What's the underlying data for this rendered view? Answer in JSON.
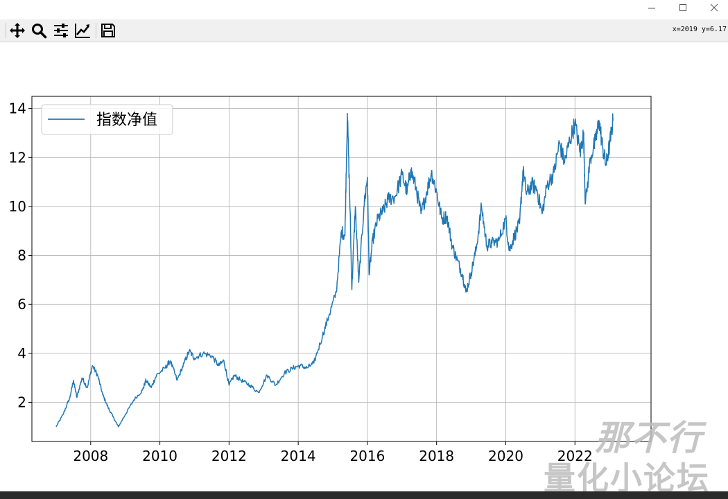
{
  "window": {
    "minimize_icon": "minimize-icon",
    "maximize_icon": "maximize-icon",
    "close_icon": "close-icon"
  },
  "toolbar": {
    "tools": [
      "move-icon",
      "zoom-icon",
      "sliders-icon",
      "trend-icon",
      "save-icon"
    ],
    "coordinate_readout": "x=2019 y=6.17"
  },
  "watermark": {
    "line1": "那不行",
    "line2": "量化小论坛"
  },
  "chart_data": {
    "type": "line",
    "legend": "top-left",
    "grid": true,
    "xlim": [
      2006.3,
      2024.2
    ],
    "ylim": [
      0.4,
      14.5
    ],
    "xticks": [
      2008,
      2010,
      2012,
      2014,
      2016,
      2018,
      2020,
      2022
    ],
    "yticks": [
      2,
      4,
      6,
      8,
      10,
      12,
      14
    ],
    "series": [
      {
        "name": "指数净值",
        "color": "#1f77b4",
        "points": [
          [
            2007.0,
            1.0
          ],
          [
            2007.2,
            1.5
          ],
          [
            2007.4,
            2.2
          ],
          [
            2007.5,
            2.9
          ],
          [
            2007.6,
            2.2
          ],
          [
            2007.75,
            3.0
          ],
          [
            2007.9,
            2.6
          ],
          [
            2008.05,
            3.5
          ],
          [
            2008.2,
            3.1
          ],
          [
            2008.35,
            2.3
          ],
          [
            2008.5,
            1.8
          ],
          [
            2008.65,
            1.4
          ],
          [
            2008.8,
            1.0
          ],
          [
            2009.0,
            1.5
          ],
          [
            2009.25,
            2.1
          ],
          [
            2009.5,
            2.5
          ],
          [
            2009.6,
            2.9
          ],
          [
            2009.75,
            2.6
          ],
          [
            2009.9,
            3.1
          ],
          [
            2010.15,
            3.4
          ],
          [
            2010.3,
            3.7
          ],
          [
            2010.5,
            2.9
          ],
          [
            2010.7,
            3.6
          ],
          [
            2010.85,
            4.1
          ],
          [
            2011.0,
            3.8
          ],
          [
            2011.25,
            4.0
          ],
          [
            2011.5,
            3.9
          ],
          [
            2011.7,
            3.5
          ],
          [
            2011.85,
            3.7
          ],
          [
            2012.0,
            2.7
          ],
          [
            2012.15,
            3.1
          ],
          [
            2012.35,
            2.9
          ],
          [
            2012.6,
            2.7
          ],
          [
            2012.85,
            2.4
          ],
          [
            2013.1,
            3.1
          ],
          [
            2013.35,
            2.7
          ],
          [
            2013.6,
            3.2
          ],
          [
            2013.85,
            3.4
          ],
          [
            2014.05,
            3.5
          ],
          [
            2014.25,
            3.4
          ],
          [
            2014.45,
            3.6
          ],
          [
            2014.7,
            4.7
          ],
          [
            2014.9,
            5.6
          ],
          [
            2015.1,
            6.5
          ],
          [
            2015.25,
            9.0
          ],
          [
            2015.35,
            8.8
          ],
          [
            2015.42,
            13.8
          ],
          [
            2015.5,
            9.8
          ],
          [
            2015.55,
            6.6
          ],
          [
            2015.65,
            10.0
          ],
          [
            2015.75,
            6.9
          ],
          [
            2015.9,
            10.0
          ],
          [
            2016.0,
            11.2
          ],
          [
            2016.05,
            7.2
          ],
          [
            2016.15,
            8.6
          ],
          [
            2016.3,
            9.5
          ],
          [
            2016.45,
            9.8
          ],
          [
            2016.6,
            10.3
          ],
          [
            2016.8,
            10.4
          ],
          [
            2017.0,
            11.3
          ],
          [
            2017.15,
            10.6
          ],
          [
            2017.25,
            11.5
          ],
          [
            2017.4,
            10.8
          ],
          [
            2017.55,
            9.7
          ],
          [
            2017.7,
            10.5
          ],
          [
            2017.85,
            11.4
          ],
          [
            2018.0,
            10.6
          ],
          [
            2018.15,
            9.5
          ],
          [
            2018.3,
            9.6
          ],
          [
            2018.45,
            8.4
          ],
          [
            2018.6,
            7.8
          ],
          [
            2018.75,
            7.2
          ],
          [
            2018.85,
            6.5
          ],
          [
            2019.0,
            7.3
          ],
          [
            2019.15,
            8.3
          ],
          [
            2019.3,
            10.0
          ],
          [
            2019.45,
            8.4
          ],
          [
            2019.6,
            8.5
          ],
          [
            2019.8,
            8.6
          ],
          [
            2020.0,
            9.5
          ],
          [
            2020.1,
            8.2
          ],
          [
            2020.25,
            8.8
          ],
          [
            2020.4,
            9.3
          ],
          [
            2020.5,
            11.5
          ],
          [
            2020.6,
            10.5
          ],
          [
            2020.75,
            10.9
          ],
          [
            2020.9,
            10.7
          ],
          [
            2021.05,
            9.7
          ],
          [
            2021.2,
            10.9
          ],
          [
            2021.4,
            11.4
          ],
          [
            2021.55,
            12.6
          ],
          [
            2021.7,
            11.8
          ],
          [
            2021.85,
            12.7
          ],
          [
            2022.0,
            13.4
          ],
          [
            2022.15,
            12.2
          ],
          [
            2022.25,
            13.0
          ],
          [
            2022.3,
            10.1
          ],
          [
            2022.45,
            12.0
          ],
          [
            2022.6,
            12.7
          ],
          [
            2022.7,
            13.5
          ],
          [
            2022.8,
            12.4
          ],
          [
            2022.9,
            11.7
          ],
          [
            2023.0,
            12.5
          ],
          [
            2023.1,
            13.5
          ]
        ]
      }
    ]
  }
}
